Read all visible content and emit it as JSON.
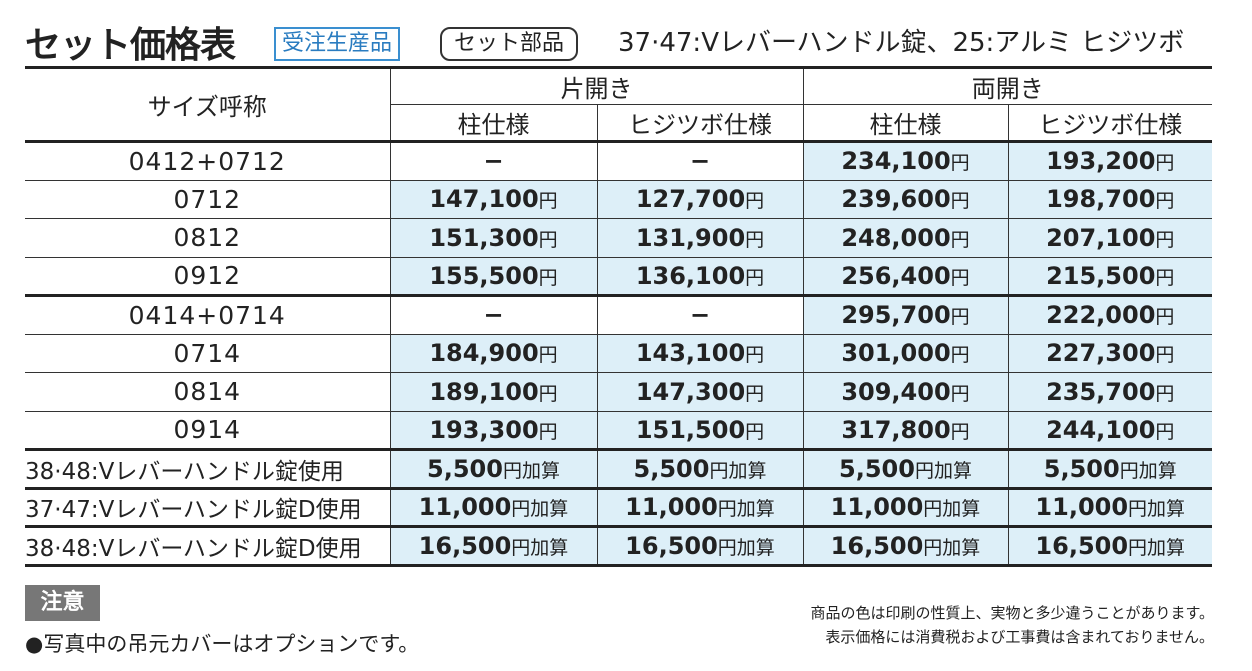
{
  "header": {
    "title": "セット価格表",
    "badges": [
      "受注生産品",
      "セット部品"
    ],
    "subtitle": "37·47:Vレバーハンドル錠、25:アルミ ヒジツボ"
  },
  "table": {
    "size_header": "サイズ呼称",
    "groups": [
      {
        "name": "片開き",
        "columns": [
          "柱仕様",
          "ヒジツボ仕様"
        ]
      },
      {
        "name": "両開き",
        "columns": [
          "柱仕様",
          "ヒジツボ仕様"
        ]
      }
    ],
    "sections": [
      [
        {
          "size": "0412+0712",
          "cells": [
            [
              "−"
            ],
            [
              "−"
            ],
            [
              "234,100",
              "円"
            ],
            [
              "193,200",
              "円"
            ]
          ]
        },
        {
          "size": "0712",
          "cells": [
            [
              "147,100",
              "円"
            ],
            [
              "127,700",
              "円"
            ],
            [
              "239,600",
              "円"
            ],
            [
              "198,700",
              "円"
            ]
          ]
        },
        {
          "size": "0812",
          "cells": [
            [
              "151,300",
              "円"
            ],
            [
              "131,900",
              "円"
            ],
            [
              "248,000",
              "円"
            ],
            [
              "207,100",
              "円"
            ]
          ]
        },
        {
          "size": "0912",
          "cells": [
            [
              "155,500",
              "円"
            ],
            [
              "136,100",
              "円"
            ],
            [
              "256,400",
              "円"
            ],
            [
              "215,500",
              "円"
            ]
          ]
        }
      ],
      [
        {
          "size": "0414+0714",
          "cells": [
            [
              "−"
            ],
            [
              "−"
            ],
            [
              "295,700",
              "円"
            ],
            [
              "222,000",
              "円"
            ]
          ]
        },
        {
          "size": "0714",
          "cells": [
            [
              "184,900",
              "円"
            ],
            [
              "143,100",
              "円"
            ],
            [
              "301,000",
              "円"
            ],
            [
              "227,300",
              "円"
            ]
          ]
        },
        {
          "size": "0814",
          "cells": [
            [
              "189,100",
              "円"
            ],
            [
              "147,300",
              "円"
            ],
            [
              "309,400",
              "円"
            ],
            [
              "235,700",
              "円"
            ]
          ]
        },
        {
          "size": "0914",
          "cells": [
            [
              "193,300",
              "円"
            ],
            [
              "151,500",
              "円"
            ],
            [
              "317,800",
              "円"
            ],
            [
              "244,100",
              "円"
            ]
          ]
        }
      ],
      [
        {
          "size": "38·48:Vレバーハンドル錠使用",
          "cells": [
            [
              "5,500",
              "円加算"
            ],
            [
              "5,500",
              "円加算"
            ],
            [
              "5,500",
              "円加算"
            ],
            [
              "5,500",
              "円加算"
            ]
          ]
        }
      ],
      [
        {
          "size": "37·47:Vレバーハンドル錠D使用",
          "cells": [
            [
              "11,000",
              "円加算"
            ],
            [
              "11,000",
              "円加算"
            ],
            [
              "11,000",
              "円加算"
            ],
            [
              "11,000",
              "円加算"
            ]
          ]
        }
      ],
      [
        {
          "size": "38·48:Vレバーハンドル錠D使用",
          "cells": [
            [
              "16,500",
              "円加算"
            ],
            [
              "16,500",
              "円加算"
            ],
            [
              "16,500",
              "円加算"
            ],
            [
              "16,500",
              "円加算"
            ]
          ]
        }
      ]
    ]
  },
  "notes": {
    "label": "注意",
    "bullet": "●写真中の吊元カバーはオプションです。",
    "remarks": [
      "商品の色は印刷の性質上、実物と多少違うことがあります。",
      "表示価格には消費税および工事費は含まれておりません。"
    ]
  }
}
